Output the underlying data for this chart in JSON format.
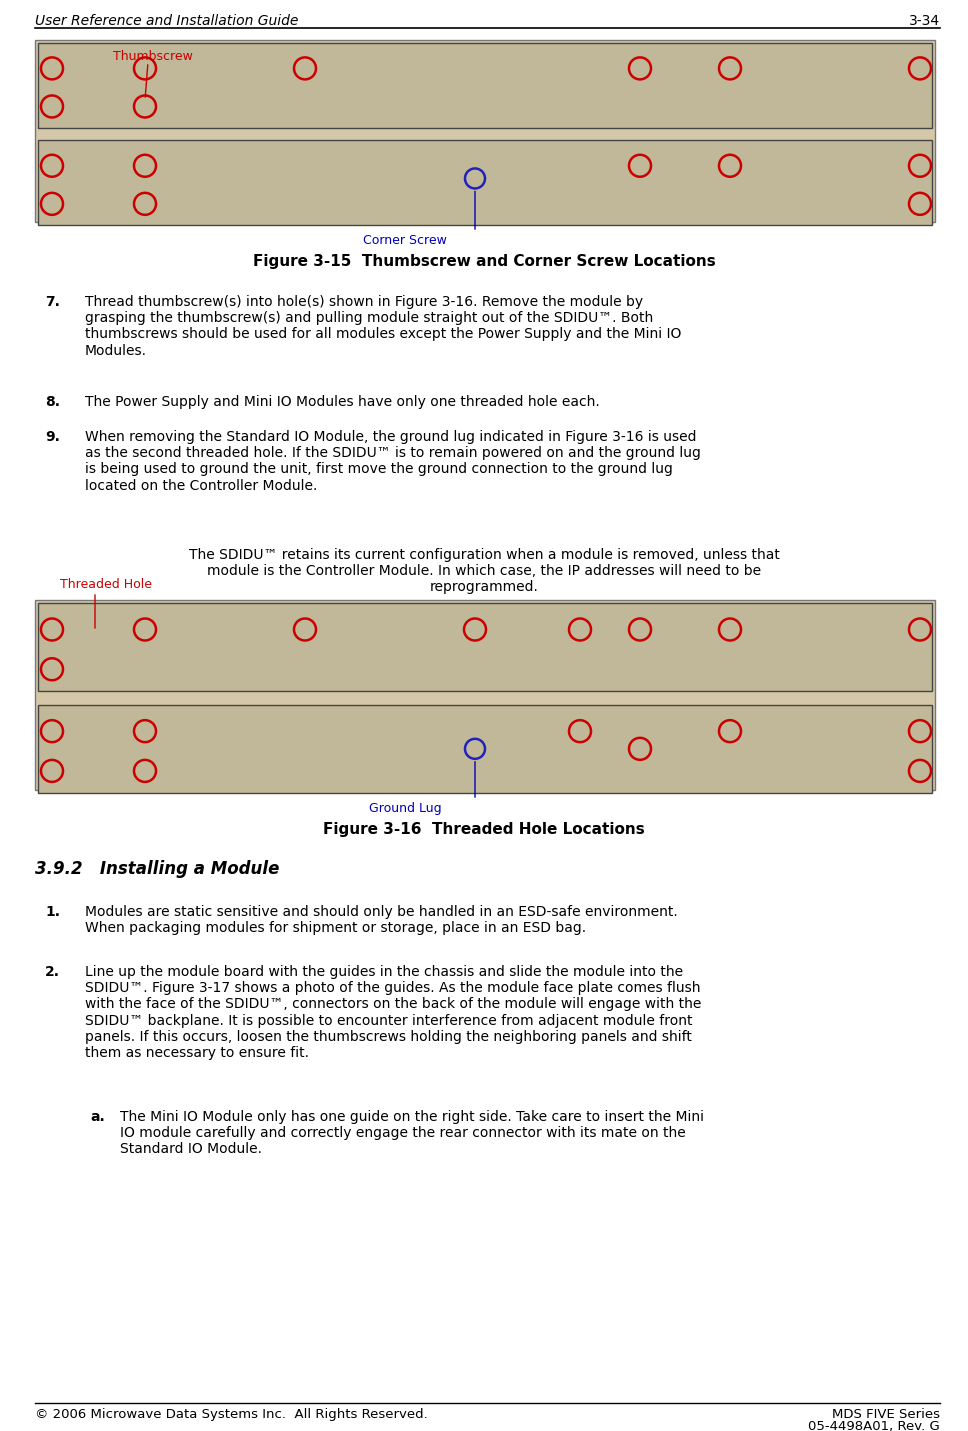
{
  "page_width": 9.68,
  "page_height": 14.31,
  "bg_color": "#ffffff",
  "header_text": "User Reference and Installation Guide",
  "header_right": "3-34",
  "header_font_size": 10,
  "footer_left": "© 2006 Microwave Data Systems Inc.  All Rights Reserved.",
  "footer_right_line1": "MDS FIVE Series",
  "footer_right_line2": "05-4498A01, Rev. G",
  "footer_font_size": 9.5,
  "fig_caption_1": "Figure 3-15  Thumbscrew and Corner Screw Locations",
  "fig_caption_2": "Figure 3-16  Threaded Hole Locations",
  "label_thumbscrew": "Thumbscrew",
  "label_corner_screw": "Corner Screw",
  "label_threaded_hole": "Threaded Hole",
  "label_ground_lug": "Ground Lug",
  "label_color_red": "#cc0000",
  "label_color_blue": "#0000bb",
  "section_392": "3.9.2   Installing a Module",
  "body_font_size": 10,
  "section_font_size": 12,
  "item7_text": "Thread thumbscrew(s) into hole(s) shown in Figure 3-16. Remove the module by\ngrasping the thumbscrew(s) and pulling module straight out of the SDIDU™. Both\nthumbs crews should be used for all modules except the Power Supply and the Mini IO\nModules.",
  "item8_text": "The Power Supply and Mini IO Modules have only one threaded hole each.",
  "item9_text": "When removing the Standard IO Module, the ground lug indicated in Figure 3-16 is used\nas the second threaded hole. If the SDIDU™ is to remain powered on and the ground lug\nis being used to ground the unit, first move the ground connection to the ground lug\nlocated on the Controller Module.",
  "note_line1": "The SDIDU™ retains its current configuration when a module is removed, unless that",
  "note_line2": "module is the Controller Module. In which case, the IP addresses will need to be",
  "note_line3": "reprogrammed.",
  "item1_text": "Modules are static sensitive and should only be handled in an ESD-safe environment.\nWhen packaging modules for shipment or storage, place in an ESD bag.",
  "item2_text": "Line up the module board with the guides in the chassis and slide the module into the\nSDIDU™. Figure 3-17 shows a photo of the guides. As the module face plate comes flush\nwith the face of the SDIDU™, connectors on the back of the module will engage with the\nSDIDU™ backplane. It is possible to encounter interference from adjacent module front\npanels. If this occurs, loosen the thumbscrews holding the neighboring panels and shift\nthem as necessary to ensure fit.",
  "item_a_text": "The Mini IO Module only has one guide on the right side. Take care to insert the Mini\nIO module carefully and correctly engage the rear connector with its mate on the\nStandard IO Module.",
  "hw_color_outer": "#d4c8a8",
  "hw_color_panel": "#b8b0a0",
  "hw_color_dark": "#706860",
  "hw_edge_color": "#555555"
}
